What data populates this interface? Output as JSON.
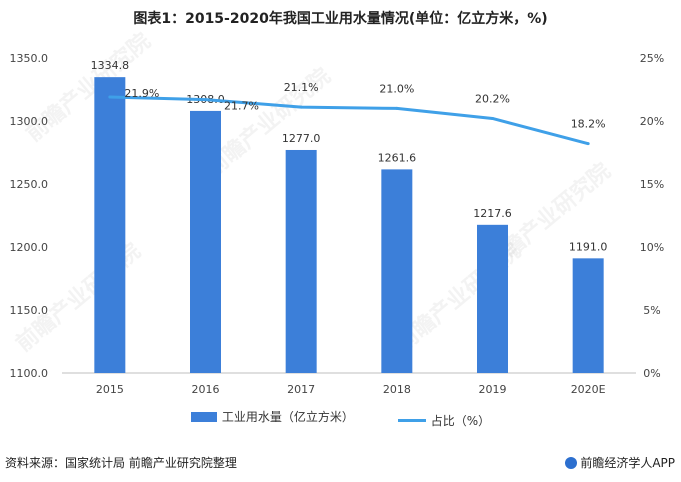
{
  "title": "图表1：2015-2020年我国工业用水量情况(单位：亿立方米，%)",
  "chart_data": {
    "type": "bar",
    "categories": [
      "2015",
      "2016",
      "2017",
      "2018",
      "2019",
      "2020E"
    ],
    "series": [
      {
        "name": "工业用水量（亿立方米）",
        "type": "bar",
        "values": [
          1334.8,
          1308.0,
          1277.0,
          1261.6,
          1217.6,
          1191.0
        ],
        "color": "#3c7fd9"
      },
      {
        "name": "占比（%）",
        "type": "line",
        "values": [
          21.9,
          21.7,
          21.1,
          21.0,
          20.2,
          18.2
        ],
        "color": "#3fa0e8"
      }
    ],
    "bar_labels": [
      "1334.8",
      "1308.0",
      "1277.0",
      "1261.6",
      "1217.6",
      "1191.0"
    ],
    "line_labels": [
      "21.9%",
      "21.7%",
      "21.1%",
      "21.0%",
      "20.2%",
      "18.2%"
    ],
    "y_left": {
      "ylim": [
        1100,
        1350
      ],
      "ticks": [
        "1100.0",
        "1150.0",
        "1200.0",
        "1250.0",
        "1300.0",
        "1350.0"
      ]
    },
    "y_right": {
      "ylim": [
        0,
        25
      ],
      "ticks": [
        "0%",
        "5%",
        "10%",
        "15%",
        "20%",
        "25%"
      ]
    },
    "grid": false,
    "legend_position": "bottom"
  },
  "legend": {
    "bar_label": "工业用水量（亿立方米）",
    "line_label": "占比（%）"
  },
  "footer": {
    "source": "资料来源：国家统计局 前瞻产业研究院整理",
    "brand": "前瞻经济学人APP"
  },
  "watermark": "前瞻产业研究院"
}
